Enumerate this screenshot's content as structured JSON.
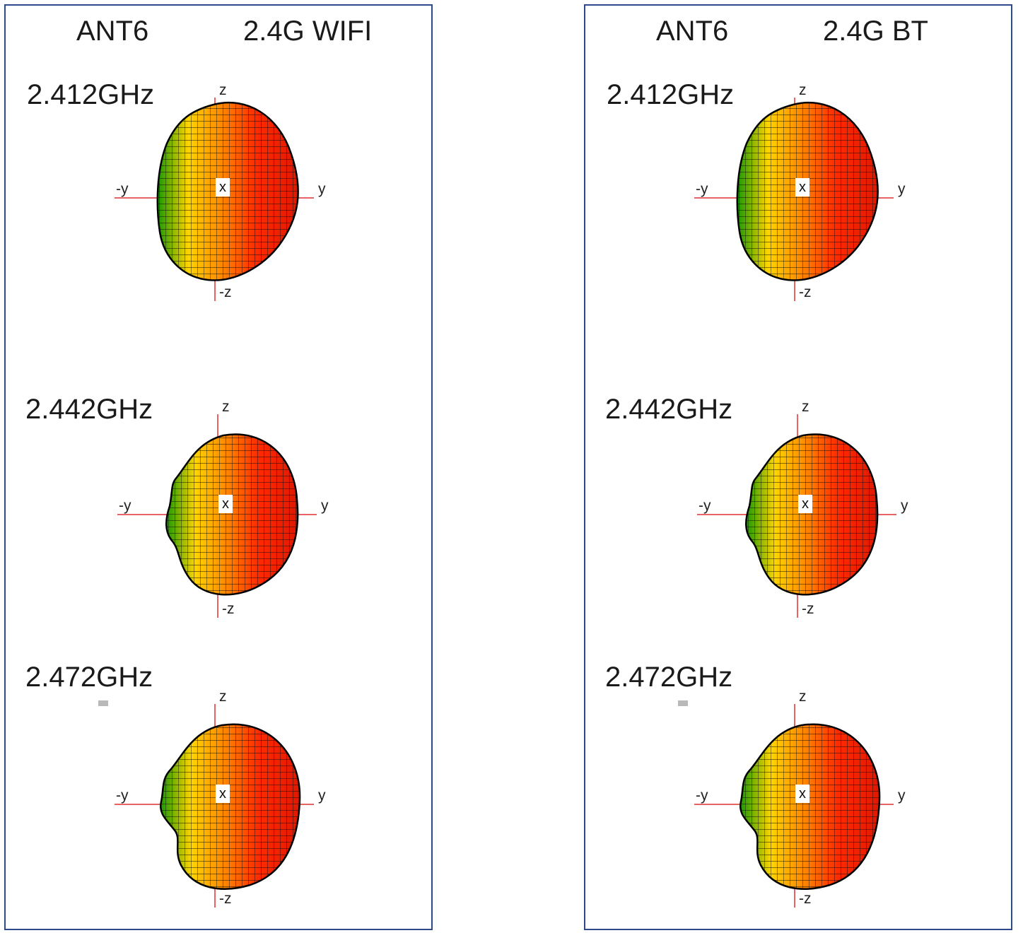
{
  "panels": [
    {
      "antenna": "ANT6",
      "band": "2.4G WIFI",
      "plots": [
        {
          "frequency": "2.412GHz",
          "axes": {
            "z": "z",
            "nz": "-z",
            "y": "y",
            "ny": "-y",
            "x": "x"
          }
        },
        {
          "frequency": "2.442GHz",
          "axes": {
            "z": "z",
            "nz": "-z",
            "y": "y",
            "ny": "-y",
            "x": "x"
          }
        },
        {
          "frequency": "2.472GHz",
          "axes": {
            "z": "z",
            "nz": "-z",
            "y": "y",
            "ny": "-y",
            "x": "x"
          }
        }
      ]
    },
    {
      "antenna": "ANT6",
      "band": "2.4G BT",
      "plots": [
        {
          "frequency": "2.412GHz",
          "axes": {
            "z": "z",
            "nz": "-z",
            "y": "y",
            "ny": "-y",
            "x": "x"
          }
        },
        {
          "frequency": "2.442GHz",
          "axes": {
            "z": "z",
            "nz": "-z",
            "y": "y",
            "ny": "-y",
            "x": "x"
          }
        },
        {
          "frequency": "2.472GHz",
          "axes": {
            "z": "z",
            "nz": "-z",
            "y": "y",
            "ny": "-y",
            "x": "x"
          }
        }
      ]
    }
  ],
  "colors": {
    "border": "#2f4a8c",
    "axis": "#e03030",
    "pattern_high": "#ff2a00",
    "pattern_mid": "#ffd400",
    "pattern_low": "#1a9a00",
    "mesh": "#111111"
  }
}
